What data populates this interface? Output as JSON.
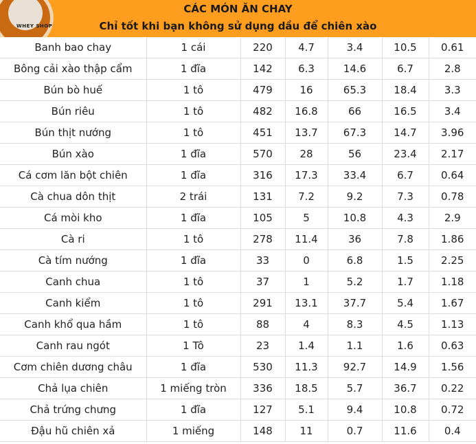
{
  "header": {
    "logo_text": "WHEY SHOP",
    "title": "CÁC MÓN ĂN CHAY",
    "subtitle": "Chỉ tốt khi bạn không sử dụng dầu để chiên xào"
  },
  "rows": [
    [
      "Banh bao chay",
      "1 cái",
      "220",
      "4.7",
      "3.4",
      "10.5",
      "0.61"
    ],
    [
      "Bông cải xào thập cẩm",
      "1 đĩa",
      "142",
      "6.3",
      "14.6",
      "6.7",
      "2.8"
    ],
    [
      "Bún bò huế",
      "1 tô",
      "479",
      "16",
      "65.3",
      "18.4",
      "3.3"
    ],
    [
      "Bún riêu",
      "1 tô",
      "482",
      "16.8",
      "66",
      "16.5",
      "3.4"
    ],
    [
      "Bún thịt nướng",
      "1 tô",
      "451",
      "13.7",
      "67.3",
      "14.7",
      "3.96"
    ],
    [
      "Bún xào",
      "1 đĩa",
      "570",
      "28",
      "56",
      "23.4",
      "2.17"
    ],
    [
      "Cá cơm lăn bột chiên",
      "1 đĩa",
      "316",
      "17.3",
      "33.4",
      "6.7",
      "0.64"
    ],
    [
      "Cà chua dôn thịt",
      "2 trái",
      "131",
      "7.2",
      "9.2",
      "7.3",
      "0.78"
    ],
    [
      "Cá mòi kho",
      "1 đĩa",
      "105",
      "5",
      "10.8",
      "4.3",
      "2.9"
    ],
    [
      "Cà ri",
      "1 tô",
      "278",
      "11.4",
      "36",
      "7.8",
      "1.86"
    ],
    [
      "Cà tím nướng",
      "1 đĩa",
      "33",
      "0",
      "6.8",
      "1.5",
      "2.25"
    ],
    [
      "Canh chua",
      "1 tô",
      "37",
      "1",
      "5.2",
      "1.7",
      "1.18"
    ],
    [
      "Canh kiểm",
      "1 tô",
      "291",
      "13.1",
      "37.7",
      "5.4",
      "1.67"
    ],
    [
      "Canh khổ qua hầm",
      "1 tô",
      "88",
      "4",
      "8.3",
      "4.5",
      "1.13"
    ],
    [
      "Canh rau ngót",
      "1 Tô",
      "23",
      "1.4",
      "1.1",
      "1.6",
      "0.63"
    ],
    [
      "Cơm chiên dương châu",
      "1 đĩa",
      "530",
      "11.3",
      "92.7",
      "14.9",
      "1.56"
    ],
    [
      "Chả lụa chiên",
      "1 miếng tròn",
      "336",
      "18.5",
      "5.7",
      "36.7",
      "0.22"
    ],
    [
      "Chả trứng chưng",
      "1 đĩa",
      "127",
      "5.1",
      "9.4",
      "10.8",
      "0.72"
    ],
    [
      "Đậu hũ chiên xả",
      "1 miếng",
      "148",
      "11",
      "0.7",
      "11.6",
      "0.4"
    ]
  ]
}
